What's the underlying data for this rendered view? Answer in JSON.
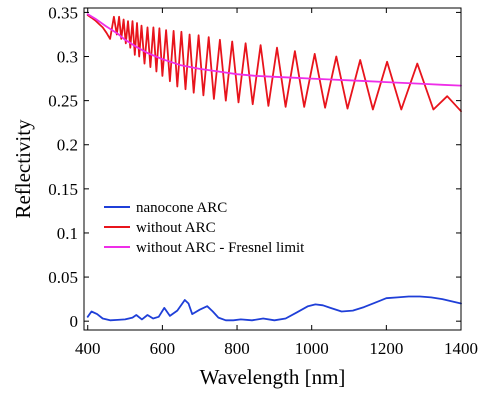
{
  "chart_data": {
    "type": "line",
    "title": "",
    "xlabel": "Wavelength [nm]",
    "ylabel": "Reflectivity",
    "xlim": [
      390,
      1400
    ],
    "ylim": [
      -0.01,
      0.355
    ],
    "xticks": [
      400,
      600,
      800,
      1000,
      1200,
      1400
    ],
    "xtick_labels": [
      "400",
      "600",
      "800",
      "1000",
      "1200",
      "1400"
    ],
    "yticks": [
      0,
      0.05,
      0.1,
      0.15,
      0.2,
      0.25,
      0.3,
      0.35
    ],
    "ytick_labels": [
      "0",
      "0.05",
      "0.1",
      "0.15",
      "0.2",
      "0.25",
      "0.3",
      "0.35"
    ],
    "grid": false,
    "legend_position": "lower-left",
    "series": [
      {
        "name": "nanocone ARC",
        "color": "#1f3fd8",
        "x": [
          400,
          410,
          425,
          440,
          460,
          480,
          500,
          520,
          530,
          545,
          560,
          575,
          590,
          605,
          620,
          640,
          660,
          670,
          680,
          700,
          720,
          735,
          750,
          770,
          790,
          810,
          840,
          870,
          900,
          930,
          960,
          990,
          1010,
          1030,
          1050,
          1080,
          1110,
          1140,
          1170,
          1200,
          1230,
          1260,
          1290,
          1320,
          1350,
          1380,
          1400
        ],
        "y": [
          0.005,
          0.011,
          0.008,
          0.003,
          0.001,
          0.0015,
          0.002,
          0.004,
          0.007,
          0.002,
          0.007,
          0.003,
          0.005,
          0.015,
          0.006,
          0.012,
          0.024,
          0.02,
          0.008,
          0.013,
          0.017,
          0.011,
          0.004,
          0.001,
          0.001,
          0.002,
          0.001,
          0.003,
          0.001,
          0.003,
          0.01,
          0.017,
          0.019,
          0.018,
          0.015,
          0.011,
          0.012,
          0.016,
          0.021,
          0.026,
          0.027,
          0.028,
          0.028,
          0.027,
          0.025,
          0.022,
          0.02
        ]
      },
      {
        "name": "without ARC",
        "color": "#e8141c",
        "x": [
          400,
          410,
          420,
          430,
          440,
          450,
          460,
          470,
          478,
          484,
          490,
          496,
          502,
          508,
          514,
          520,
          526,
          532,
          538,
          544,
          552,
          560,
          568,
          576,
          584,
          592,
          600,
          610,
          620,
          630,
          640,
          651,
          662,
          673,
          684,
          697,
          710,
          724,
          738,
          754,
          770,
          787,
          804,
          823,
          842,
          863,
          884,
          907,
          930,
          955,
          980,
          1008,
          1036,
          1066,
          1096,
          1130,
          1164,
          1202,
          1240,
          1283,
          1326,
          1363,
          1400
        ],
        "y": [
          0.347,
          0.344,
          0.341,
          0.337,
          0.333,
          0.327,
          0.32,
          0.345,
          0.325,
          0.345,
          0.32,
          0.342,
          0.315,
          0.34,
          0.31,
          0.34,
          0.302,
          0.338,
          0.3,
          0.335,
          0.292,
          0.333,
          0.288,
          0.333,
          0.283,
          0.332,
          0.278,
          0.33,
          0.272,
          0.329,
          0.266,
          0.328,
          0.263,
          0.325,
          0.259,
          0.324,
          0.256,
          0.322,
          0.252,
          0.319,
          0.25,
          0.317,
          0.248,
          0.315,
          0.246,
          0.313,
          0.244,
          0.31,
          0.243,
          0.306,
          0.243,
          0.303,
          0.242,
          0.3,
          0.241,
          0.296,
          0.24,
          0.294,
          0.24,
          0.292,
          0.24,
          0.255,
          0.238
        ]
      },
      {
        "name": "without ARC - Fresnel limit",
        "color": "#ee2ee8",
        "x": [
          400,
          420,
          450,
          480,
          500,
          530,
          560,
          600,
          650,
          700,
          750,
          800,
          850,
          900,
          950,
          1000,
          1050,
          1100,
          1150,
          1200,
          1250,
          1300,
          1350,
          1400
        ],
        "y": [
          0.348,
          0.343,
          0.334,
          0.326,
          0.319,
          0.311,
          0.304,
          0.297,
          0.29,
          0.286,
          0.283,
          0.28,
          0.278,
          0.277,
          0.276,
          0.275,
          0.274,
          0.273,
          0.272,
          0.271,
          0.27,
          0.269,
          0.268,
          0.267
        ]
      }
    ]
  }
}
